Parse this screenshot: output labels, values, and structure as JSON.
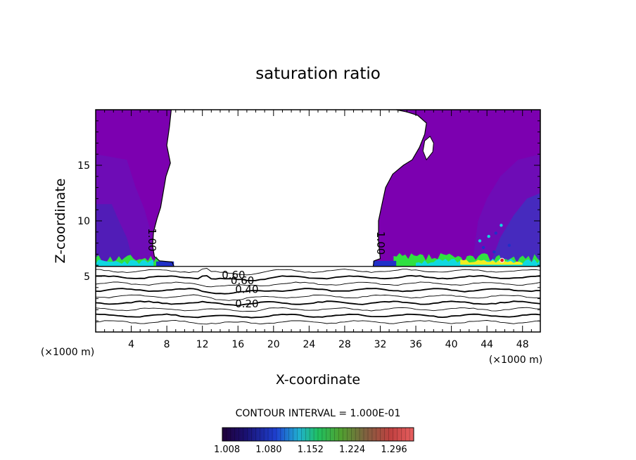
{
  "chart_data": {
    "type": "heatmap",
    "title": "saturation ratio",
    "xlabel": "X-coordinate",
    "ylabel": "Z-coordinate",
    "x_unit": "(×1000 m)",
    "xlim": [
      0,
      50
    ],
    "ylim": [
      0,
      20
    ],
    "x_ticks": [
      4,
      8,
      12,
      16,
      20,
      24,
      28,
      32,
      36,
      40,
      44,
      48
    ],
    "y_ticks": [
      5,
      10,
      15
    ],
    "contour_interval_text": "CONTOUR INTERVAL = 1.000E-01",
    "colorbar_ticks": [
      "1.008",
      "1.080",
      "1.152",
      "1.224",
      "1.296"
    ],
    "colorbar_range": [
      1.0,
      1.33
    ],
    "contour_labels": [
      {
        "text": "1.00",
        "x": 6.3,
        "z": 8.3,
        "rotate": 90
      },
      {
        "text": "1.00",
        "x": 32.0,
        "z": 8.0,
        "rotate": 90
      },
      {
        "text": "0.60",
        "x": 15.5,
        "z": 5.1,
        "rotate": 0
      },
      {
        "text": "0.60",
        "x": 16.5,
        "z": 4.6,
        "rotate": 0
      },
      {
        "text": "0.40",
        "x": 17.0,
        "z": 3.8,
        "rotate": 0
      },
      {
        "text": "0.20",
        "x": 17.0,
        "z": 2.5,
        "rotate": 0
      }
    ],
    "subsaturated_contour_levels": [
      0.1,
      0.2,
      0.3,
      0.4,
      0.5,
      0.6,
      0.7,
      0.8,
      0.9
    ],
    "supersaturated_fill_color": "#7c00b0",
    "colors": {
      "deep_purple": "#7c00b0",
      "blue": "#2030c8",
      "cyan": "#10d8e0",
      "green": "#30e040",
      "yellow": "#f0f020",
      "red": "#e02020"
    }
  }
}
